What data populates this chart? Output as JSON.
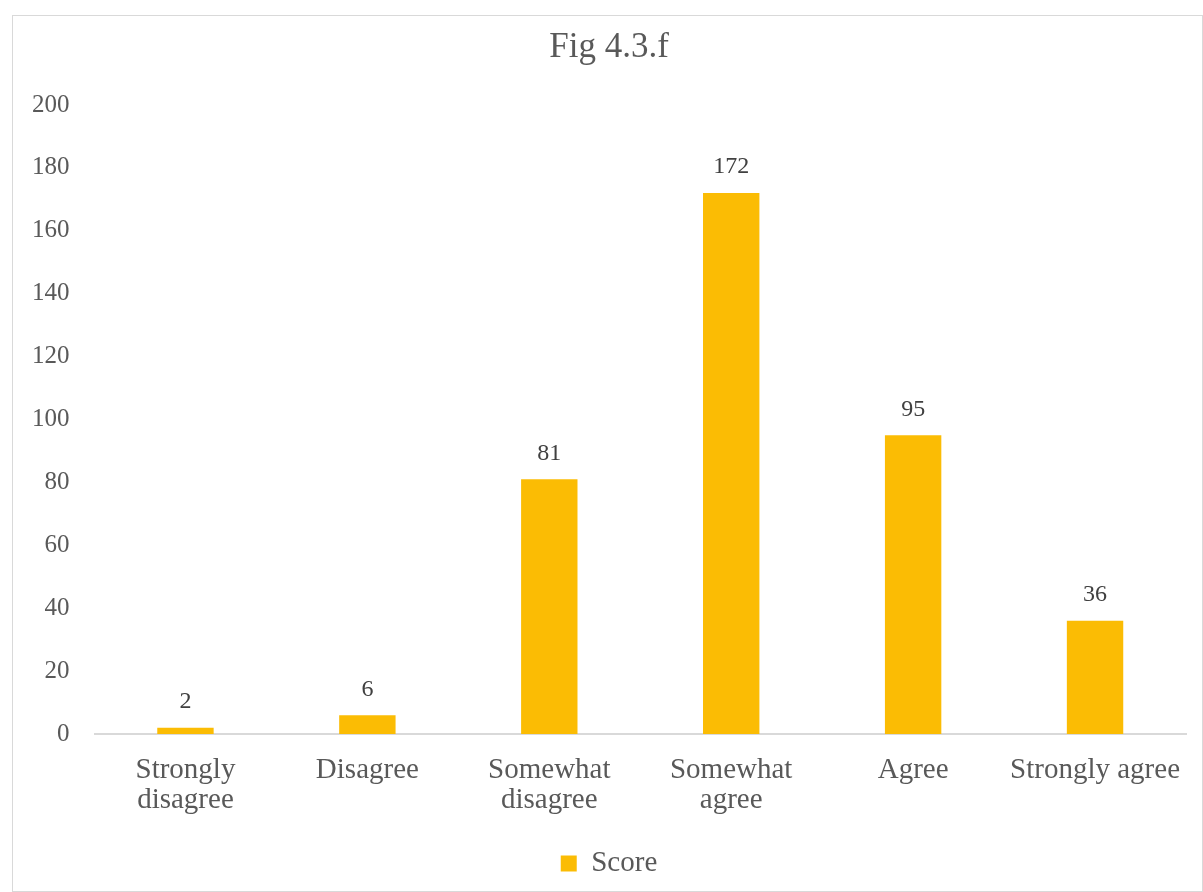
{
  "chart_data": {
    "type": "bar",
    "title": "Fig 4.3.f",
    "categories": [
      "Strongly disagree",
      "Disagree",
      "Somewhat disagree",
      "Somewhat agree",
      "Agree",
      "Strongly agree"
    ],
    "series": [
      {
        "name": "Score",
        "color": "#fbbc04",
        "values": [
          2,
          6,
          81,
          172,
          95,
          36
        ]
      }
    ],
    "ylim": [
      0,
      200
    ],
    "yticks": [
      0,
      20,
      40,
      60,
      80,
      100,
      120,
      140,
      160,
      180,
      200
    ],
    "grid": false,
    "legend": "bottom",
    "data_labels": true
  }
}
